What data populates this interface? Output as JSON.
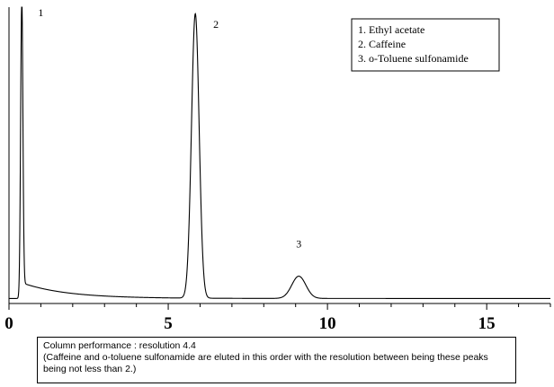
{
  "chart_data": {
    "type": "line",
    "title": "",
    "xlabel": "",
    "ylabel": "",
    "xlim": [
      0,
      17
    ],
    "ylim": [
      0,
      100
    ],
    "grid": false,
    "x_ticks": [
      {
        "value": 0,
        "label": "0"
      },
      {
        "value": 5,
        "label": "5"
      },
      {
        "value": 10,
        "label": "10"
      },
      {
        "value": 15,
        "label": "15"
      }
    ],
    "minor_tick_step": 1,
    "baseline": {
      "start": 7,
      "tail": 1.7,
      "decay": 1.4
    },
    "peaks": [
      {
        "id": "1",
        "label": "1",
        "x": 0.4,
        "height": 100,
        "width": 0.035,
        "label_x": 1.0,
        "label_y": 97
      },
      {
        "id": "2",
        "label": "2",
        "x": 5.85,
        "height": 96,
        "width": 0.12,
        "label_x": 6.5,
        "label_y": 93
      },
      {
        "id": "3",
        "label": "3",
        "x": 9.1,
        "height": 7.5,
        "width": 0.22,
        "label_x": 9.1,
        "label_y": 19
      }
    ],
    "legend": {
      "placement": "top-right",
      "entries": [
        "1. Ethyl acetate",
        "2. Caffeine",
        "3. o-Toluene sulfonamide"
      ]
    }
  },
  "note": {
    "line1": "Column performance : resolution 4.4",
    "line2": "(Caffeine and o-toluene sulfonamide are eluted in this order with the resolution between being these peaks being not less than 2.)"
  }
}
